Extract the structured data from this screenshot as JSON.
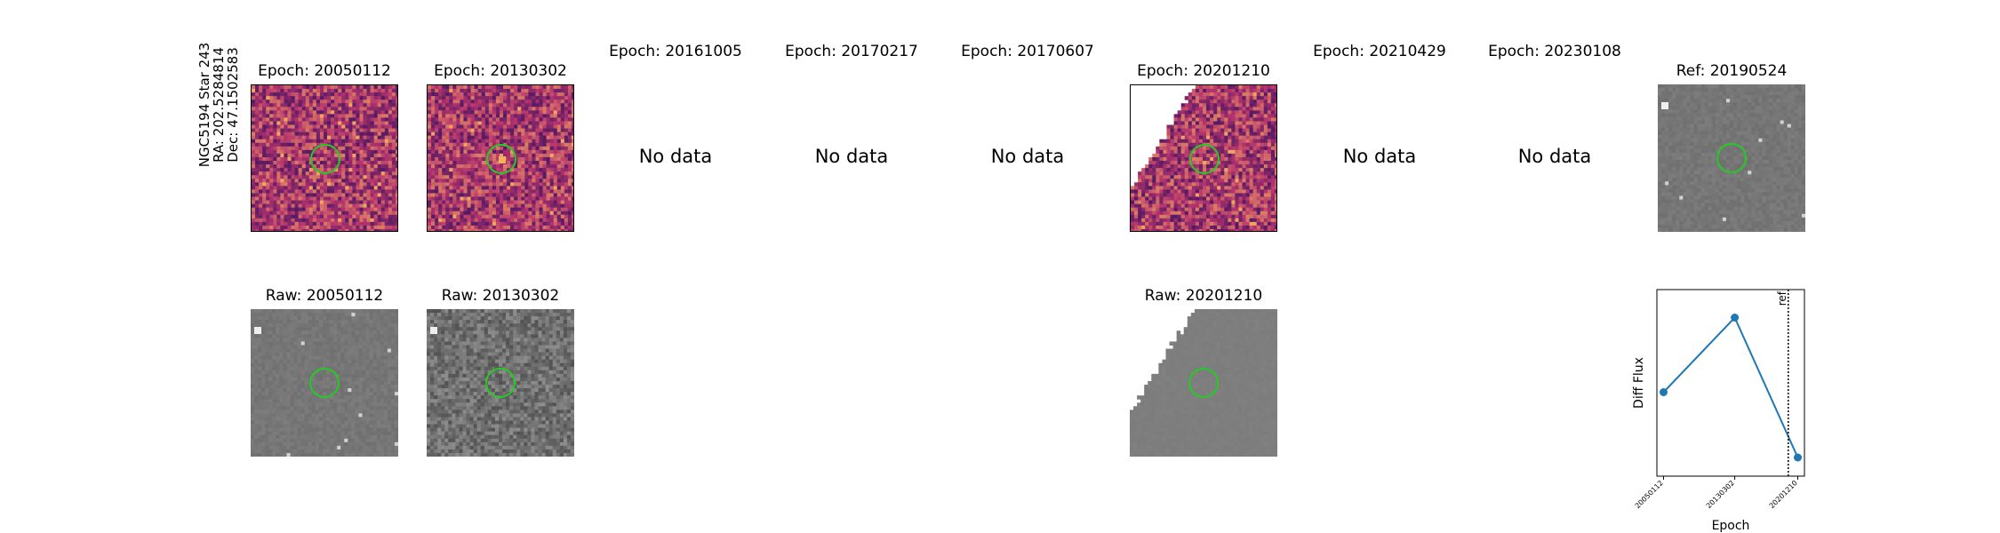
{
  "side_info": {
    "line1": "NGC5194 Star 243",
    "line2": "RA: 202.5284814",
    "line3": "Dec: 47.1502583"
  },
  "top_row": [
    {
      "title": "Epoch: 20050112",
      "status": "diff"
    },
    {
      "title": "Epoch: 20130302",
      "status": "diff"
    },
    {
      "title": "Epoch: 20161005",
      "status": "nodata",
      "nodata_label": "No data"
    },
    {
      "title": "Epoch: 20170217",
      "status": "nodata",
      "nodata_label": "No data"
    },
    {
      "title": "Epoch: 20170607",
      "status": "nodata",
      "nodata_label": "No data"
    },
    {
      "title": "Epoch: 20201210",
      "status": "diff"
    },
    {
      "title": "Epoch: 20210429",
      "status": "nodata",
      "nodata_label": "No data"
    },
    {
      "title": "Epoch: 20230108",
      "status": "nodata",
      "nodata_label": "No data"
    },
    {
      "title": "Ref: 20190524",
      "status": "ref"
    }
  ],
  "bottom_row": [
    {
      "title": "Raw: 20050112"
    },
    {
      "title": "Raw: 20130302"
    },
    {
      "title": "Raw: 20201210"
    }
  ],
  "colors": {
    "marker_circle": "#22cc22",
    "series_line": "#1f77b4",
    "diff_dark": "#2a0f5e",
    "diff_mid": "#b4336e",
    "diff_bright": "#f7b05e",
    "raw_gray": "#808080"
  },
  "chart_data": {
    "type": "line",
    "title": "",
    "xlabel": "Epoch",
    "ylabel": "Diff Flux",
    "categories": [
      "20050112",
      "20130302",
      "20201210"
    ],
    "x_positions": [
      20050112,
      20130302,
      20201210
    ],
    "series": [
      {
        "values": [
          0.2,
          1.0,
          -0.5
        ]
      }
    ],
    "ylim": [
      -0.7,
      1.3
    ],
    "reference_line": {
      "x": 20190524,
      "label": "ref",
      "style": "dotted"
    },
    "grid": false,
    "y_ticks_shown": false
  }
}
